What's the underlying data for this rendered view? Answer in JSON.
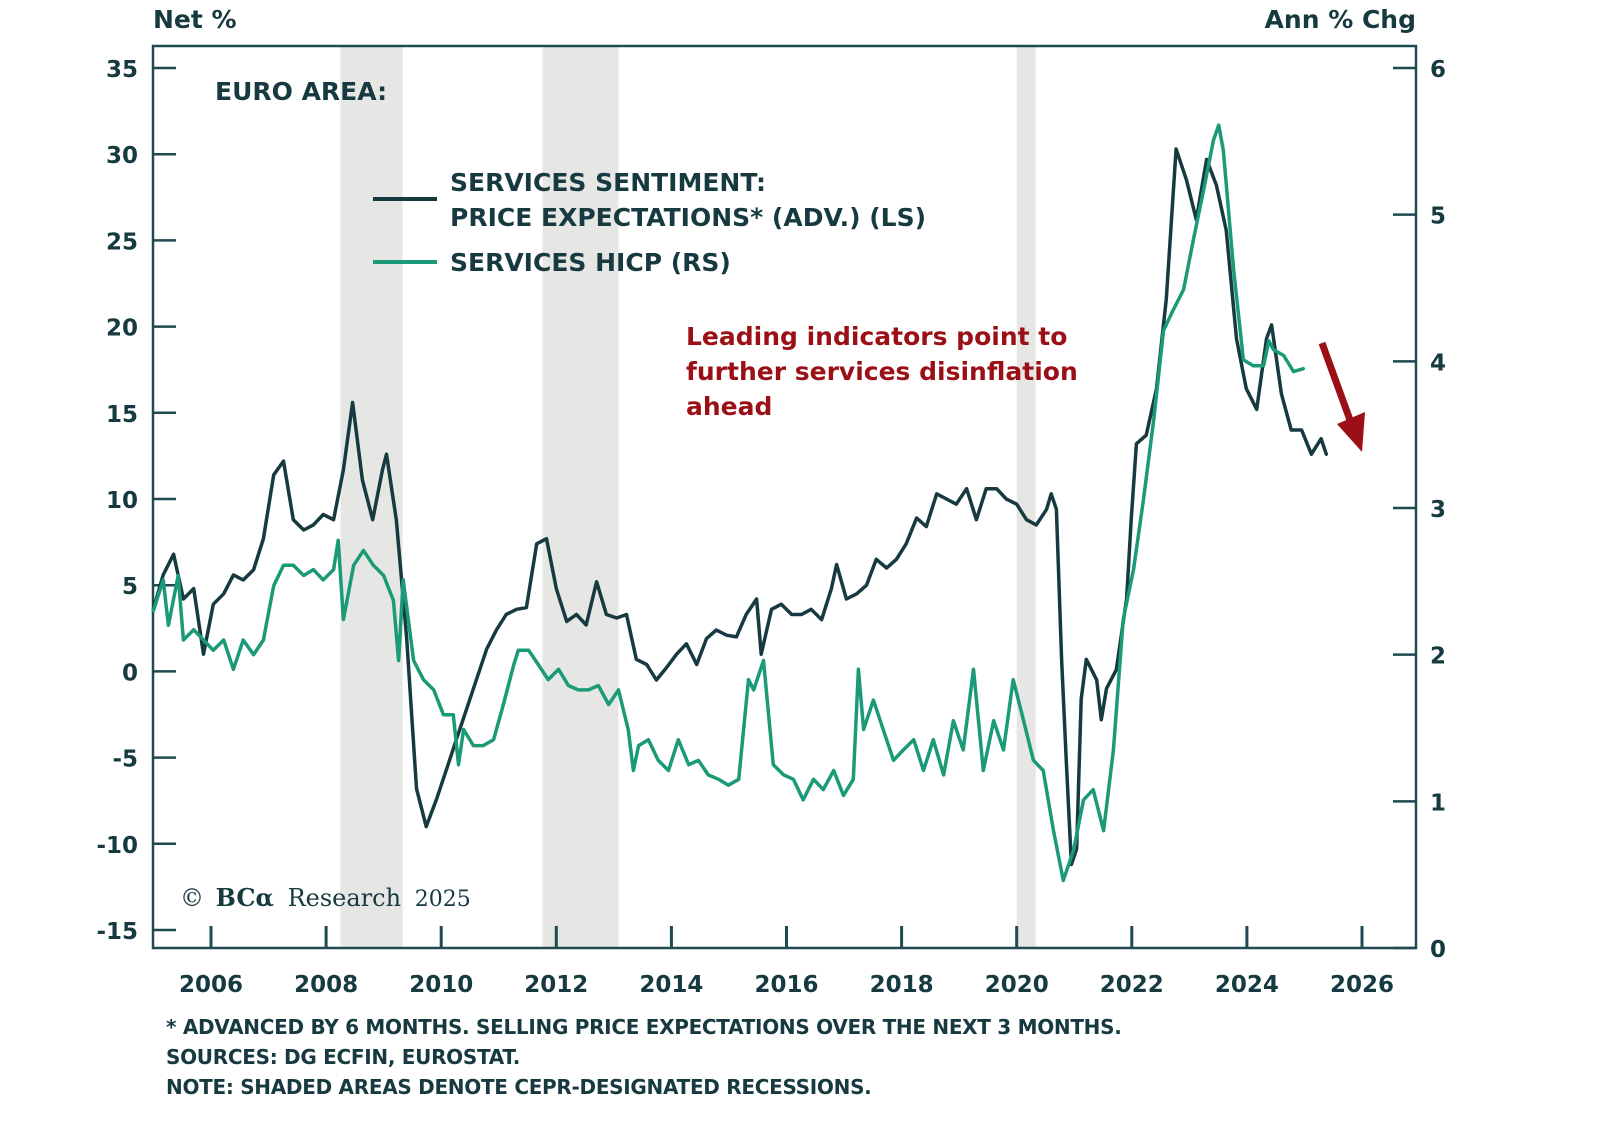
{
  "chart_data": {
    "type": "line",
    "region_label": "EURO AREA:",
    "left_axis": {
      "title": "Net %",
      "ticks": [
        35,
        30,
        25,
        20,
        15,
        10,
        5,
        0,
        -5,
        -10,
        -15
      ],
      "range": [
        -15,
        36.3
      ]
    },
    "right_axis": {
      "title": "Ann % Chg",
      "ticks": [
        6,
        5,
        4,
        3,
        2,
        1,
        0
      ],
      "range": [
        0,
        6.15
      ]
    },
    "x_axis": {
      "ticks": [
        2006,
        2008,
        2010,
        2012,
        2014,
        2016,
        2018,
        2020,
        2022,
        2024,
        2026
      ],
      "range": [
        2005.0,
        2026.95
      ]
    },
    "grid": false,
    "recessions": [
      [
        2008.25,
        2009.33
      ],
      [
        2011.76,
        2013.08
      ],
      [
        2020.0,
        2020.33
      ]
    ],
    "legend_position": "top-left",
    "series": [
      {
        "name_line1": "SERVICES SENTIMENT:",
        "name_line2": "PRICE EXPECTATIONS* (ADV.) (LS)",
        "axis": "left",
        "color": "#163a3f",
        "x": [
          2005.0,
          2005.17,
          2005.35,
          2005.52,
          2005.7,
          2005.87,
          2006.04,
          2006.22,
          2006.39,
          2006.56,
          2006.74,
          2006.91,
          2007.09,
          2007.26,
          2007.43,
          2007.61,
          2007.78,
          2007.95,
          2008.13,
          2008.3,
          2008.46,
          2008.63,
          2008.81,
          2008.98,
          2009.05,
          2009.22,
          2009.4,
          2009.57,
          2009.74,
          2009.92,
          2010.09,
          2010.27,
          2010.44,
          2010.61,
          2010.79,
          2010.96,
          2011.13,
          2011.31,
          2011.48,
          2011.66,
          2011.83,
          2012.0,
          2012.18,
          2012.35,
          2012.52,
          2012.7,
          2012.87,
          2013.05,
          2013.22,
          2013.39,
          2013.57,
          2013.74,
          2013.91,
          2014.09,
          2014.26,
          2014.44,
          2014.61,
          2014.78,
          2014.96,
          2015.13,
          2015.3,
          2015.48,
          2015.56,
          2015.74,
          2015.91,
          2016.09,
          2016.26,
          2016.43,
          2016.61,
          2016.78,
          2016.87,
          2017.04,
          2017.22,
          2017.39,
          2017.56,
          2017.74,
          2017.91,
          2018.08,
          2018.26,
          2018.43,
          2018.61,
          2018.78,
          2018.95,
          2019.13,
          2019.3,
          2019.47,
          2019.65,
          2019.82,
          2020.0,
          2020.17,
          2020.34,
          2020.52,
          2020.6,
          2020.69,
          2020.78,
          2020.86,
          2020.95,
          2021.04,
          2021.12,
          2021.21,
          2021.39,
          2021.47,
          2021.56,
          2021.73,
          2021.91,
          2021.99,
          2022.08,
          2022.25,
          2022.43,
          2022.6,
          2022.77,
          2022.95,
          2023.12,
          2023.3,
          2023.47,
          2023.64,
          2023.82,
          2023.99,
          2024.17,
          2024.34,
          2024.43,
          2024.6,
          2024.77,
          2024.95,
          2025.12,
          2025.29,
          2025.38
        ],
        "values": [
          3.6,
          5.6,
          6.8,
          4.2,
          4.8,
          1.0,
          3.9,
          4.5,
          5.6,
          5.3,
          5.9,
          7.7,
          11.4,
          12.2,
          8.8,
          8.2,
          8.5,
          9.1,
          8.8,
          11.7,
          15.6,
          11.1,
          8.8,
          11.7,
          12.6,
          8.8,
          1.9,
          -6.8,
          -9.0,
          -7.4,
          -5.7,
          -3.9,
          -2.2,
          -0.5,
          1.3,
          2.4,
          3.3,
          3.6,
          3.7,
          7.4,
          7.7,
          4.8,
          2.9,
          3.3,
          2.7,
          5.2,
          3.3,
          3.1,
          3.3,
          0.7,
          0.4,
          -0.5,
          0.2,
          1.0,
          1.6,
          0.4,
          1.9,
          2.4,
          2.1,
          2.0,
          3.3,
          4.2,
          1.0,
          3.6,
          3.9,
          3.3,
          3.3,
          3.6,
          3.0,
          4.8,
          6.2,
          4.2,
          4.5,
          5.0,
          6.5,
          6.0,
          6.5,
          7.4,
          8.9,
          8.4,
          10.3,
          10.0,
          9.7,
          10.6,
          8.8,
          10.6,
          10.6,
          10.0,
          9.7,
          8.8,
          8.5,
          9.4,
          10.3,
          9.4,
          0.7,
          -5.1,
          -11.2,
          -10.3,
          -1.6,
          0.7,
          -0.5,
          -2.8,
          -1.0,
          0.1,
          4.2,
          8.8,
          13.2,
          13.7,
          16.4,
          21.6,
          30.3,
          28.5,
          26.2,
          29.7,
          28.2,
          25.6,
          19.3,
          16.4,
          15.2,
          19.3,
          20.1,
          16.1,
          14.0,
          14.0,
          12.6,
          13.5,
          12.6
        ]
      },
      {
        "name_line1": "SERVICES HICP (RS)",
        "name_line2": "",
        "axis": "right",
        "color": "#1b9a78",
        "x": [
          2005.0,
          2005.17,
          2005.26,
          2005.43,
          2005.52,
          2005.7,
          2005.87,
          2006.04,
          2006.22,
          2006.39,
          2006.56,
          2006.74,
          2006.91,
          2007.09,
          2007.26,
          2007.43,
          2007.61,
          2007.78,
          2007.95,
          2008.13,
          2008.21,
          2008.3,
          2008.48,
          2008.65,
          2008.82,
          2009.0,
          2009.17,
          2009.26,
          2009.34,
          2009.52,
          2009.69,
          2009.87,
          2010.04,
          2010.21,
          2010.3,
          2010.39,
          2010.56,
          2010.73,
          2010.91,
          2011.08,
          2011.26,
          2011.34,
          2011.52,
          2011.69,
          2011.86,
          2012.04,
          2012.21,
          2012.38,
          2012.56,
          2012.73,
          2012.91,
          2013.08,
          2013.25,
          2013.34,
          2013.43,
          2013.6,
          2013.77,
          2013.95,
          2014.12,
          2014.3,
          2014.47,
          2014.64,
          2014.82,
          2014.99,
          2015.17,
          2015.34,
          2015.43,
          2015.6,
          2015.77,
          2015.95,
          2016.12,
          2016.29,
          2016.47,
          2016.64,
          2016.82,
          2016.99,
          2017.16,
          2017.25,
          2017.34,
          2017.51,
          2017.68,
          2017.86,
          2018.03,
          2018.21,
          2018.38,
          2018.55,
          2018.73,
          2018.9,
          2019.07,
          2019.25,
          2019.42,
          2019.6,
          2019.77,
          2019.94,
          2020.12,
          2020.29,
          2020.46,
          2020.64,
          2020.81,
          2020.99,
          2021.16,
          2021.33,
          2021.51,
          2021.68,
          2021.85,
          2022.03,
          2022.2,
          2022.38,
          2022.55,
          2022.72,
          2022.9,
          2023.07,
          2023.25,
          2023.42,
          2023.51,
          2023.59,
          2023.77,
          2023.94,
          2024.11,
          2024.29,
          2024.38,
          2024.46,
          2024.64,
          2024.81,
          2024.98
        ],
        "values": [
          2.3,
          2.51,
          2.2,
          2.54,
          2.1,
          2.17,
          2.1,
          2.03,
          2.1,
          1.9,
          2.1,
          2.0,
          2.1,
          2.47,
          2.61,
          2.61,
          2.54,
          2.58,
          2.51,
          2.58,
          2.78,
          2.24,
          2.61,
          2.71,
          2.61,
          2.54,
          2.37,
          1.96,
          2.51,
          1.96,
          1.83,
          1.76,
          1.59,
          1.59,
          1.25,
          1.49,
          1.38,
          1.38,
          1.42,
          1.66,
          1.93,
          2.03,
          2.03,
          1.93,
          1.83,
          1.9,
          1.79,
          1.76,
          1.76,
          1.79,
          1.66,
          1.76,
          1.49,
          1.21,
          1.38,
          1.42,
          1.28,
          1.21,
          1.42,
          1.25,
          1.28,
          1.18,
          1.15,
          1.11,
          1.15,
          1.83,
          1.76,
          1.96,
          1.25,
          1.18,
          1.15,
          1.01,
          1.15,
          1.08,
          1.21,
          1.04,
          1.15,
          1.9,
          1.49,
          1.69,
          1.49,
          1.28,
          1.35,
          1.42,
          1.21,
          1.42,
          1.18,
          1.55,
          1.35,
          1.9,
          1.21,
          1.55,
          1.35,
          1.83,
          1.55,
          1.28,
          1.21,
          0.8,
          0.46,
          0.67,
          1.01,
          1.08,
          0.8,
          1.35,
          2.24,
          2.58,
          3.05,
          3.6,
          4.21,
          4.35,
          4.49,
          4.83,
          5.17,
          5.51,
          5.61,
          5.44,
          4.62,
          4.01,
          3.97,
          3.97,
          4.14,
          4.08,
          4.04,
          3.93,
          3.95
        ]
      }
    ],
    "annotation": {
      "lines": [
        "Leading indicators point to",
        "further services disinflation",
        "ahead"
      ],
      "color": "#9b0f17",
      "arrow": "down-right"
    },
    "copyright": {
      "symbol": "©",
      "brand": "BCα",
      "text": "Research",
      "year": "2025"
    }
  },
  "footnotes": [
    "* ADVANCED BY 6 MONTHS. SELLING PRICE EXPECTATIONS OVER THE NEXT 3 MONTHS.",
    "SOURCES: DG ECFIN, EUROSTAT.",
    "NOTE: SHADED AREAS DENOTE CEPR-DESIGNATED RECESSIONS."
  ]
}
